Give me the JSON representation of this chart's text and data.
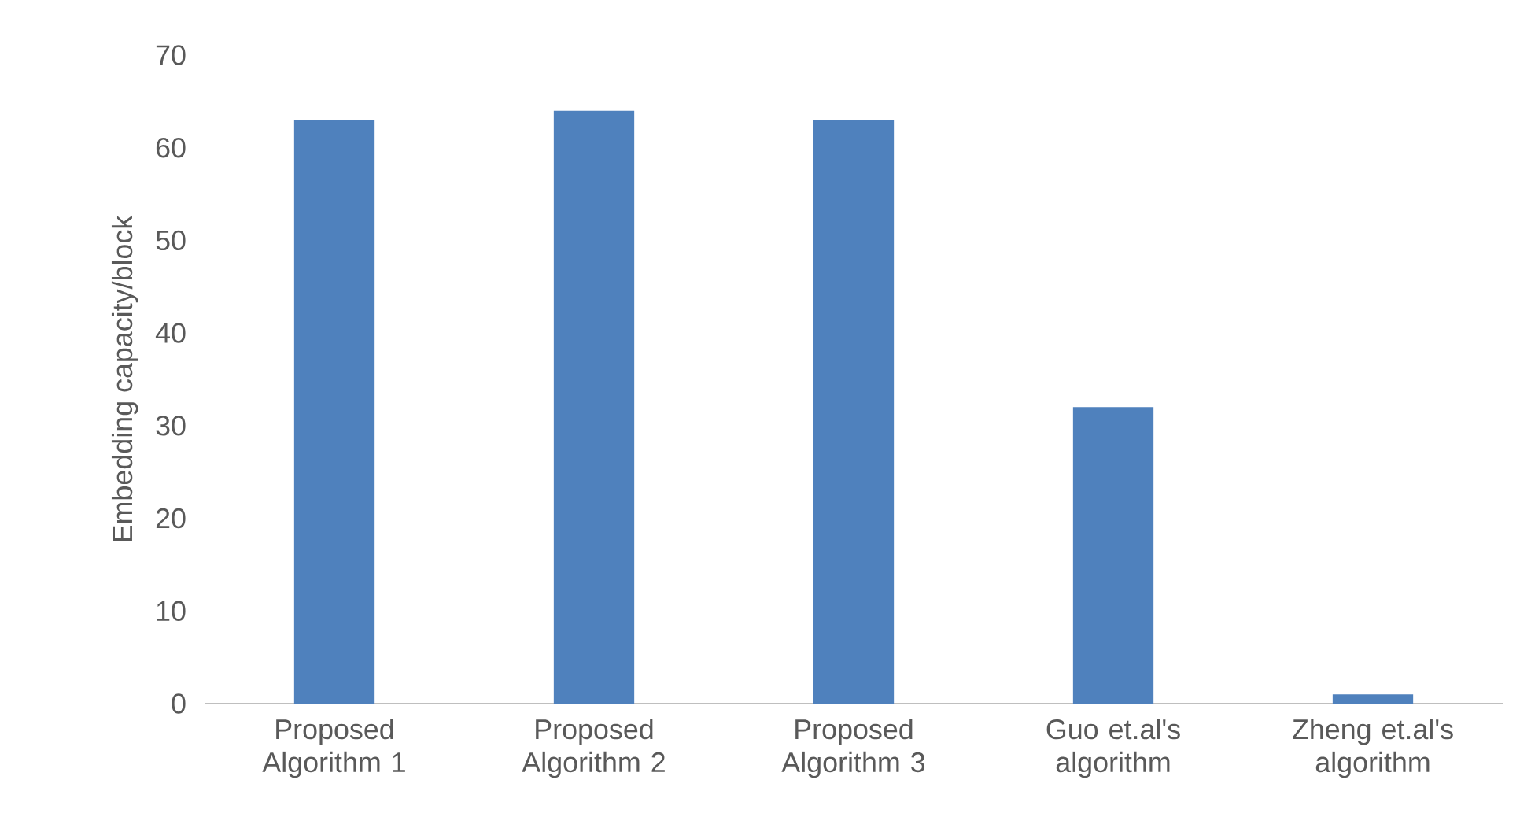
{
  "chart_data": {
    "type": "bar",
    "ylabel": "Embedding capacity/block",
    "categories": [
      "Proposed Algorithm 1",
      "Proposed Algorithm 2",
      "Proposed Algorithm 3",
      "Guo et.al's algorithm",
      "Zheng et.al's algorithm"
    ],
    "values": [
      63,
      64,
      63,
      32,
      1
    ],
    "color": "#4f81bd",
    "ylim": [
      0,
      70
    ],
    "yticks": [
      0,
      10,
      20,
      30,
      40,
      50,
      60,
      70
    ]
  }
}
